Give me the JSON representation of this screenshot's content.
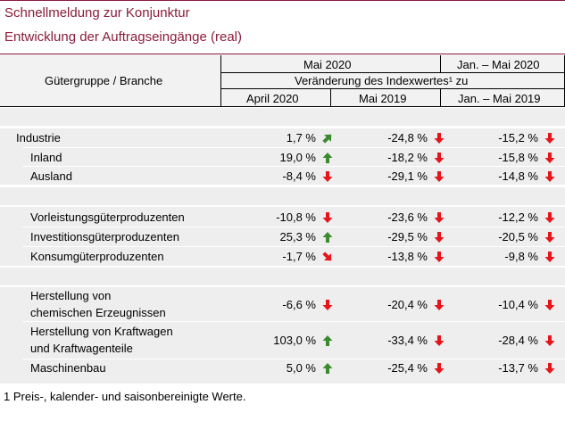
{
  "header": {
    "line1": "Schnellmeldung zur Konjunktur",
    "line2": "Entwicklung der Auftragseingänge (real)"
  },
  "table_head": {
    "group_col": "Gütergruppe / Branche",
    "period_main": "Mai 2020",
    "period_cum": "Jan. – Mai 2020",
    "subtitle": "Veränderung des Indexwertes¹ zu",
    "col1": "April 2020",
    "col2": "Mai 2019",
    "col3": "Jan. – Mai 2019"
  },
  "colors": {
    "header_text": "#8a1c3c",
    "up_arrow": "#3c8a2e",
    "down_arrow": "#e8141c"
  },
  "rows": [
    {
      "label": "Industrie",
      "v1": "1,7 %",
      "a1": "up-right",
      "v2": "-24,8 %",
      "a2": "down",
      "v3": "-15,2 %",
      "a3": "down"
    },
    {
      "label": "Inland",
      "v1": "19,0 %",
      "a1": "up",
      "v2": "-18,2 %",
      "a2": "down",
      "v3": "-15,8 %",
      "a3": "down"
    },
    {
      "label": "Ausland",
      "v1": "-8,4 %",
      "a1": "down",
      "v2": "-29,1 %",
      "a2": "down",
      "v3": "-14,8 %",
      "a3": "down"
    },
    {
      "label": "Vorleistungsgüterproduzenten",
      "v1": "-10,8 %",
      "a1": "down",
      "v2": "-23,6 %",
      "a2": "down",
      "v3": "-12,2 %",
      "a3": "down"
    },
    {
      "label": "Investitionsgüterproduzenten",
      "v1": "25,3 %",
      "a1": "up",
      "v2": "-29,5 %",
      "a2": "down",
      "v3": "-20,5 %",
      "a3": "down"
    },
    {
      "label": "Konsumgüterproduzenten",
      "v1": "-1,7 %",
      "a1": "down-right",
      "v2": "-13,8 %",
      "a2": "down",
      "v3": "-9,8 %",
      "a3": "down"
    },
    {
      "label_l1": "Herstellung von",
      "label_l2": "chemischen Erzeugnissen",
      "v1": "-6,6 %",
      "a1": "down",
      "v2": "-20,4 %",
      "a2": "down",
      "v3": "-10,4 %",
      "a3": "down"
    },
    {
      "label_l1": "Herstellung von Kraftwagen",
      "label_l2": "und Kraftwagenteile",
      "v1": "103,0 %",
      "a1": "up",
      "v2": "-33,4 %",
      "a2": "down",
      "v3": "-28,4 %",
      "a3": "down"
    },
    {
      "label": "Maschinenbau",
      "v1": "5,0 %",
      "a1": "up",
      "v2": "-25,4 %",
      "a2": "down",
      "v3": "-13,7 %",
      "a3": "down"
    }
  ],
  "footnote": "1 Preis-, kalender- und saisonbereinigte Werte."
}
